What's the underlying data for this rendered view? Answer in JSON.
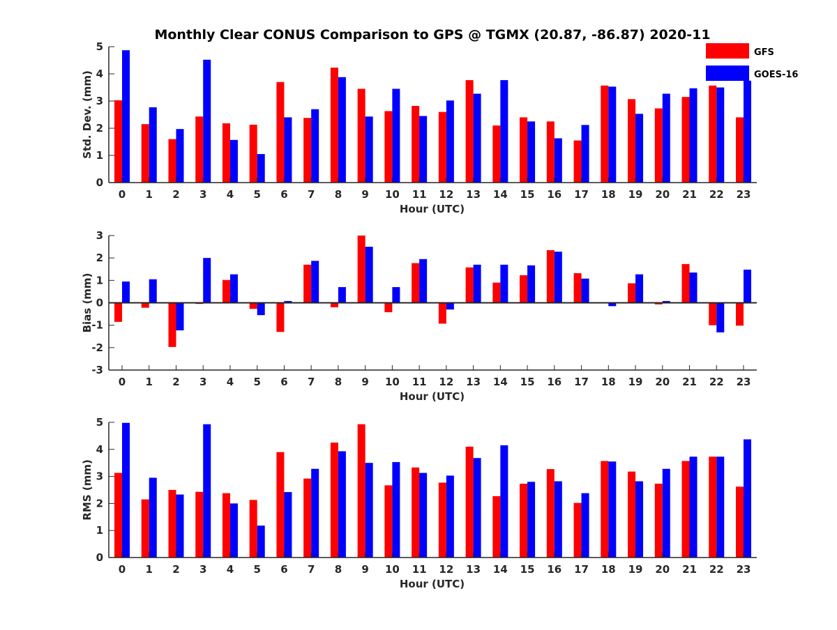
{
  "figure": {
    "title": "Monthly Clear CONUS Comparison to GPS @ TGMX (20.87, -86.87) 2020-11",
    "legend": [
      {
        "name": "GFS",
        "color": "#ff0000"
      },
      {
        "name": "GOES-16",
        "color": "#0000ff"
      }
    ]
  },
  "chart_data": [
    {
      "type": "bar",
      "ylabel": "Std. Dev. (mm)",
      "xlabel": "Hour (UTC)",
      "ylim": [
        0,
        5
      ],
      "yticks": [
        0,
        1,
        2,
        3,
        4,
        5
      ],
      "categories": [
        "0",
        "1",
        "2",
        "3",
        "4",
        "5",
        "6",
        "7",
        "8",
        "9",
        "10",
        "11",
        "12",
        "13",
        "14",
        "15",
        "16",
        "17",
        "18",
        "19",
        "20",
        "21",
        "22",
        "23"
      ],
      "series": [
        {
          "name": "GFS",
          "color": "#ff0000",
          "values": [
            3.03,
            2.15,
            1.6,
            2.43,
            2.18,
            2.13,
            3.7,
            2.38,
            4.23,
            3.45,
            2.63,
            2.82,
            2.6,
            3.77,
            2.1,
            2.4,
            2.25,
            1.55,
            3.57,
            3.07,
            2.73,
            3.15,
            3.57,
            2.4
          ]
        },
        {
          "name": "GOES-16",
          "color": "#0000ff",
          "values": [
            4.87,
            2.77,
            1.97,
            4.52,
            1.57,
            1.05,
            2.4,
            2.7,
            3.88,
            2.43,
            3.45,
            2.45,
            3.02,
            3.27,
            3.77,
            2.25,
            1.63,
            2.12,
            3.53,
            2.53,
            3.27,
            3.47,
            3.5,
            3.75
          ]
        }
      ]
    },
    {
      "type": "bar",
      "ylabel": "Bias (mm)",
      "xlabel": "Hour (UTC)",
      "ylim": [
        -3,
        3
      ],
      "yticks": [
        -3,
        -2,
        -1,
        0,
        1,
        2,
        3
      ],
      "categories": [
        "0",
        "1",
        "2",
        "3",
        "4",
        "5",
        "6",
        "7",
        "8",
        "9",
        "10",
        "11",
        "12",
        "13",
        "14",
        "15",
        "16",
        "17",
        "18",
        "19",
        "20",
        "21",
        "22",
        "23"
      ],
      "series": [
        {
          "name": "GFS",
          "color": "#ff0000",
          "values": [
            -0.85,
            -0.22,
            -1.97,
            -0.05,
            1.02,
            -0.27,
            -1.3,
            1.7,
            -0.2,
            3.0,
            -0.42,
            1.77,
            -0.93,
            1.58,
            0.9,
            1.23,
            2.35,
            1.32,
            0.0,
            0.87,
            -0.07,
            1.73,
            -1.0,
            -1.02
          ]
        },
        {
          "name": "GOES-16",
          "color": "#0000ff",
          "values": [
            0.95,
            1.05,
            -1.23,
            2.0,
            1.27,
            -0.55,
            0.08,
            1.87,
            0.7,
            2.5,
            0.7,
            1.95,
            -0.3,
            1.7,
            1.7,
            1.67,
            2.28,
            1.08,
            -0.15,
            1.27,
            0.08,
            1.35,
            -1.32,
            1.48
          ]
        }
      ]
    },
    {
      "type": "bar",
      "ylabel": "RMS (mm)",
      "xlabel": "Hour (UTC)",
      "ylim": [
        0,
        5
      ],
      "yticks": [
        0,
        1,
        2,
        3,
        4,
        5
      ],
      "categories": [
        "0",
        "1",
        "2",
        "3",
        "4",
        "5",
        "6",
        "7",
        "8",
        "9",
        "10",
        "11",
        "12",
        "13",
        "14",
        "15",
        "16",
        "17",
        "18",
        "19",
        "20",
        "21",
        "22",
        "23"
      ],
      "series": [
        {
          "name": "GFS",
          "color": "#ff0000",
          "values": [
            3.13,
            2.15,
            2.5,
            2.43,
            2.38,
            2.13,
            3.9,
            2.92,
            4.25,
            4.93,
            2.67,
            3.33,
            2.77,
            4.1,
            2.27,
            2.73,
            3.27,
            2.02,
            3.57,
            3.18,
            2.73,
            3.57,
            3.73,
            2.62
          ]
        },
        {
          "name": "GOES-16",
          "color": "#0000ff",
          "values": [
            4.98,
            2.95,
            2.33,
            4.93,
            2.0,
            1.18,
            2.42,
            3.28,
            3.93,
            3.5,
            3.53,
            3.13,
            3.03,
            3.68,
            4.15,
            2.8,
            2.82,
            2.38,
            3.55,
            2.82,
            3.28,
            3.73,
            3.73,
            4.37
          ]
        }
      ]
    }
  ]
}
